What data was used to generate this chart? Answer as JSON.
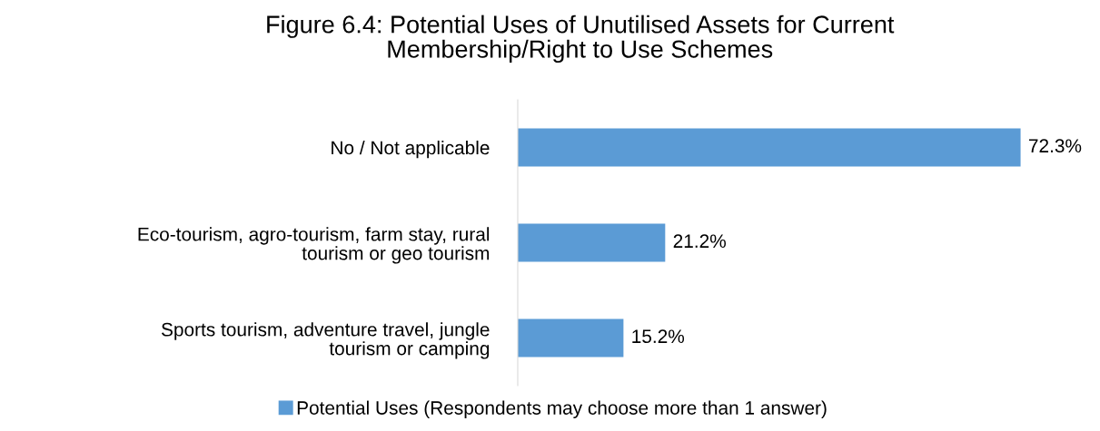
{
  "chart_data": {
    "type": "bar",
    "orientation": "horizontal",
    "title": "Figure 6.4: Potential Uses of Unutilised Assets for Current\nMembership/Right to Use Schemes",
    "categories": [
      "No / Not applicable",
      "Eco-tourism, agro-tourism, farm stay, rural\ntourism or geo tourism",
      "Sports tourism, adventure travel, jungle\ntourism or camping"
    ],
    "series": [
      {
        "name": "Potential Uses (Respondents may choose more than 1 answer)",
        "color": "#5b9bd5",
        "values": [
          72.3,
          21.2,
          15.2
        ],
        "value_labels": [
          "72.3%",
          "21.2%",
          "15.2%"
        ]
      }
    ],
    "legend": "bottom",
    "grid": false
  }
}
